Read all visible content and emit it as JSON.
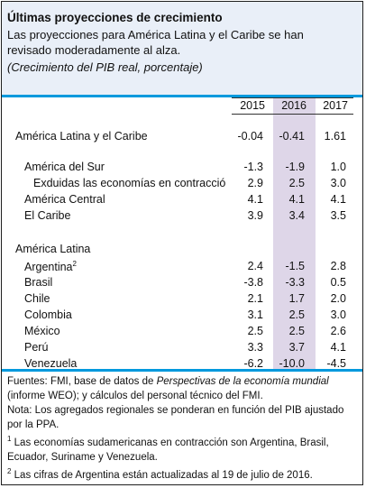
{
  "header": {
    "title": "Últimas proyecciones de crecimiento",
    "subtitle": "Las proyecciones para América Latina y el Caribe se han revisado moderadamente al alza.",
    "unit_note": "(Crecimiento del PIB real, porcentaje)"
  },
  "table": {
    "columns": [
      "2015",
      "2016",
      "2017"
    ],
    "rows": [
      {
        "label": "América Latina y el Caribe",
        "values": [
          "-0.04",
          "-0.41",
          "1.61"
        ]
      },
      {
        "label": "América del Sur",
        "values": [
          "-1.3",
          "-1.9",
          "1.0"
        ]
      },
      {
        "label": "Exduidas las economías en contracció",
        "values": [
          "2.9",
          "2.5",
          "3.0"
        ]
      },
      {
        "label": "América Central",
        "values": [
          "4.1",
          "4.1",
          "4.1"
        ]
      },
      {
        "label": "El Caribe",
        "values": [
          "3.9",
          "3.4",
          "3.5"
        ]
      }
    ],
    "section_label": "América Latina",
    "countries": [
      {
        "label": "Argentina",
        "sup": "2",
        "values": [
          "2.4",
          "-1.5",
          "2.8"
        ]
      },
      {
        "label": "Brasil",
        "values": [
          "-3.8",
          "-3.3",
          "0.5"
        ]
      },
      {
        "label": "Chile",
        "values": [
          "2.1",
          "1.7",
          "2.0"
        ]
      },
      {
        "label": "Colombia",
        "values": [
          "3.1",
          "2.5",
          "3.0"
        ]
      },
      {
        "label": "México",
        "values": [
          "2.5",
          "2.5",
          "2.6"
        ]
      },
      {
        "label": "Perú",
        "values": [
          "3.3",
          "3.7",
          "4.1"
        ]
      },
      {
        "label": "Venezuela",
        "values": [
          "-6.2",
          "-10.0",
          "-4.5"
        ]
      }
    ]
  },
  "notes": {
    "source_a": "Fuentes: FMI, base de datos de ",
    "source_em": "Perspectivas de la economía mundial",
    "source_b": " (informe WEO); y cálculos del personal técnico del FMI.",
    "nota": "Nota: Los agregados regionales se ponderan en función del PIB ajustado por la PPA.",
    "fn1_mark": "1",
    "fn1": " Las economías sudamericanas en contracción son Argentina, Brasil, Ecuador, Suriname y Venezuela.",
    "fn2_mark": "2",
    "fn2": " Las cifras de Argentina están actualizadas al 19 de julio de 2016."
  },
  "colors": {
    "header_bg": "#e9eff8",
    "rule": "#0099dd",
    "shade_2016": "#ded6e8",
    "border": "#1f1f1f"
  }
}
